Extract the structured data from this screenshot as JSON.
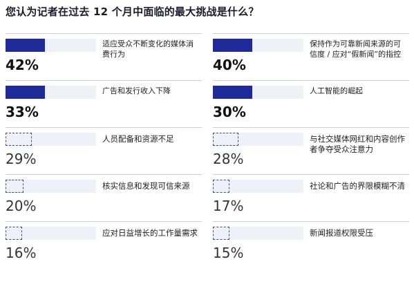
{
  "chart_data": {
    "type": "bar",
    "title": "您认为记者在过去 12 个月中面临的最大挑战是什么？",
    "categories": [
      "适应受众不断变化的媒体消费行为",
      "保持作为可靠新闻来源的可信度 / 应对“假新闻”的指控",
      "广告和发行收入下降",
      "人工智能的崛起",
      "人员配备和资源不足",
      "与社交媒体网红和内容创作者争夺受众注意力",
      "核实信息和发现可信来源",
      "社论和广告的界限模糊不清",
      "应对日益增长的工作量需求",
      "新闻报道权限受压"
    ],
    "values": [
      42,
      40,
      33,
      30,
      29,
      28,
      20,
      17,
      16,
      15
    ],
    "display_values": [
      "42%",
      "40%",
      "33%",
      "30%",
      "29%",
      "28%",
      "20%",
      "17%",
      "16%",
      "15%"
    ],
    "unit": "%",
    "ylim": [
      0,
      100
    ],
    "layout": "two-column grid, ranked left to right, top to bottom",
    "highlight_top": 4,
    "colors": {
      "bar": "#1e2a9a",
      "track": "#eef2f8",
      "dashed_outline": "#3a4a8a",
      "separator": "#c9cdd6"
    }
  }
}
